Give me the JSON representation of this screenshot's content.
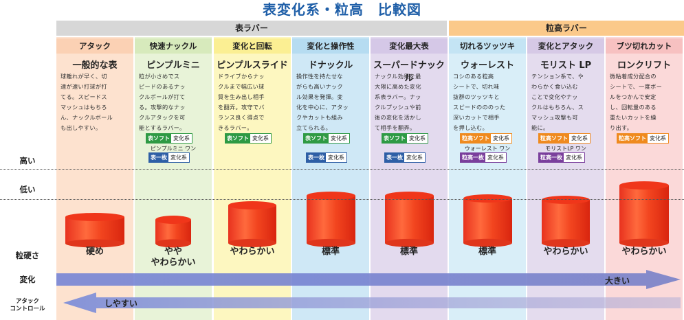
{
  "title": "表変化系・粒高　比較図",
  "groups": {
    "omote": "表ラバー",
    "tsubu": "粒高ラバー"
  },
  "row_labels": {
    "high": "高い",
    "low": "低い",
    "hardness": "粒硬さ",
    "change": "変化",
    "control_1": "アタック",
    "control_2": "コントロール"
  },
  "change_arrow_label": "大きい",
  "control_arrow_label": "しやすい",
  "columns": [
    {
      "category": "アタック",
      "name": "一般的な表",
      "desc": "球離れが早く、切\n速が速い打球が打\nてる。スピードス\nマッシュはもちろ\nん、ナックルボール\nも出しやすい。",
      "badges": [],
      "hardness": "硬め",
      "bg": "#fde2cf",
      "head_bg": "#fbd1b4",
      "height_level": 0.25
    },
    {
      "category": "快速ナックル",
      "name": "ピンプルミニ",
      "desc": "粒が小さめでス\nピードのあるナッ\nクルボールが打て\nる。攻撃的なナッ\nクルアタックを可\n能とするラバー。",
      "badges": [
        {
          "l": "表ソフト",
          "r": "変化系",
          "c": "#2e9a44"
        },
        {
          "l": "表一枚",
          "r": "変化系",
          "c": "#2e5fa6"
        }
      ],
      "subname": "ピンプルミニ ワン",
      "hardness": "やや\nやわらかい",
      "bg": "#e8f3d8",
      "head_bg": "#d7eabc",
      "height_level": 0.2
    },
    {
      "category": "変化と回転",
      "name": "ピンプルスライド",
      "desc": "ドライブからナッ\nクルまで幅広い球\n質を生み出し相手\nを翻弄。攻守でバ\nランス良く得点で\nきるラバー。",
      "badges": [
        {
          "l": "表ソフト",
          "r": "変化系",
          "c": "#2e9a44"
        }
      ],
      "hardness": "やわらかい",
      "bg": "#fdf7c0",
      "head_bg": "#fbef93",
      "height_level": 0.45
    },
    {
      "category": "変化と操作性",
      "name": "ドナックル",
      "desc": "操作性を持たせな\nがらも高いナック\nル効果を発揮。変\n化を中心に、アタッ\nクやカットも組み\n立てられる。",
      "badges": [
        {
          "l": "表ソフト",
          "r": "変化系",
          "c": "#2e9a44"
        },
        {
          "l": "表一枚",
          "r": "変化系",
          "c": "#2e5fa6"
        }
      ],
      "hardness": "標準",
      "bg": "#cfe8f6",
      "head_bg": "#b6dcf1",
      "height_level": 0.62
    },
    {
      "category": "変化最大表",
      "name": "スーパードナックル",
      "desc": "ナックル効果を最\n大限に高めた変化\n系表ラバー。ナッ\nクルプッシュや前\n後の変化を活かし\nて相手を翻弄。",
      "badges": [
        {
          "l": "表ソフト",
          "r": "変化系",
          "c": "#2e9a44"
        },
        {
          "l": "表一枚",
          "r": "変化系",
          "c": "#2e5fa6"
        }
      ],
      "hardness": "標準",
      "bg": "#e3daee",
      "head_bg": "#d5c8e7",
      "height_level": 0.62
    },
    {
      "category": "切れるツッツキ",
      "name": "ウォーレスト",
      "desc": "コシのある粒高\nシートで、切れ味\n抜群のツッツキと\nスピードのののった\n深いカットで相手\nを押し込む。",
      "badges": [
        {
          "l": "粒高ソフト",
          "r": "変化系",
          "c": "#ef8a1e"
        },
        {
          "l": "粒高一枚",
          "r": "変化系",
          "c": "#7a3f9c"
        }
      ],
      "subname": "ウォーレスト ワン",
      "hardness": "標準",
      "bg": "#d9eef8",
      "head_bg": "#c4e4f4",
      "height_level": 0.57
    },
    {
      "category": "変化とアタック",
      "name": "モリスト LP",
      "desc": "テンション系で、や\nわらかく食い込む\nことで変化やナッ\nクルはもちろん、ス\nマッシュ攻撃も可\n能に。",
      "badges": [
        {
          "l": "粒高ソフト",
          "r": "変化系",
          "c": "#ef8a1e"
        },
        {
          "l": "粒高一枚",
          "r": "変化系",
          "c": "#7a3f9c"
        }
      ],
      "subname": "モリストLP ワン",
      "hardness": "やわらかい",
      "bg": "#e4dcee",
      "head_bg": "#d6c9e6",
      "height_level": 0.55
    },
    {
      "category": "ブツ切れカット",
      "name": "ロンクリフト",
      "desc": "微粘着成分配合の\nシートで、一度ボー\nルをつかんで安定\nし、回転量のある\n重たいカットを繰\nり出す。",
      "badges": [
        {
          "l": "粒高ソフト",
          "r": "変化系",
          "c": "#ef8a1e"
        }
      ],
      "hardness": "やわらかい",
      "bg": "#fbd9d9",
      "head_bg": "#f7c1c1",
      "height_level": 0.8
    }
  ]
}
